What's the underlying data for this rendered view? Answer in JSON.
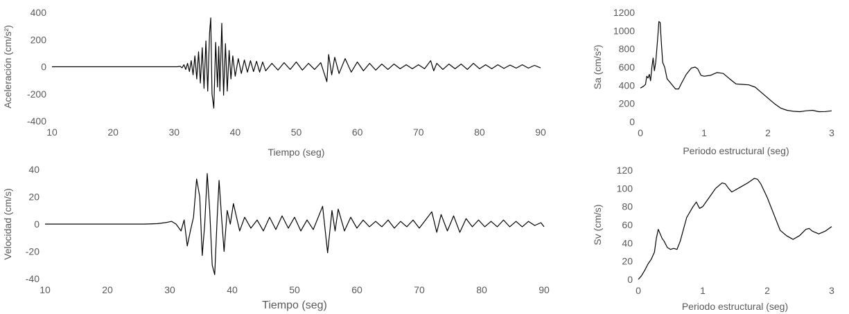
{
  "chart_data": [
    {
      "id": "aceleracion",
      "type": "line",
      "xlabel": "Tiempo (seg)",
      "ylabel": "Aceleración (cm/s²)",
      "xlim": [
        10,
        90
      ],
      "ylim": [
        -400,
        400
      ],
      "xticks": [
        10,
        20,
        30,
        40,
        50,
        60,
        70,
        80,
        90
      ],
      "yticks": [
        -400,
        -200,
        0,
        200,
        400
      ],
      "grid": false,
      "series": [
        {
          "color": "#000000",
          "points": [
            [
              10,
              0
            ],
            [
              20,
              0
            ],
            [
              29,
              0
            ],
            [
              30.5,
              0
            ],
            [
              31,
              3
            ],
            [
              31.3,
              -8
            ],
            [
              31.6,
              15
            ],
            [
              31.9,
              -20
            ],
            [
              32.2,
              25
            ],
            [
              32.5,
              -35
            ],
            [
              32.8,
              45
            ],
            [
              33.1,
              -60
            ],
            [
              33.4,
              80
            ],
            [
              33.7,
              -90
            ],
            [
              34.0,
              110
            ],
            [
              34.3,
              -120
            ],
            [
              34.6,
              140
            ],
            [
              34.9,
              -160
            ],
            [
              35.2,
              190
            ],
            [
              35.5,
              -180
            ],
            [
              35.8,
              250
            ],
            [
              36.0,
              360
            ],
            [
              36.2,
              -200
            ],
            [
              36.5,
              -305
            ],
            [
              36.8,
              180
            ],
            [
              37.1,
              -150
            ],
            [
              37.3,
              150
            ],
            [
              37.5,
              -180
            ],
            [
              37.8,
              320
            ],
            [
              38.1,
              -210
            ],
            [
              38.4,
              170
            ],
            [
              38.7,
              -180
            ],
            [
              39.0,
              120
            ],
            [
              39.3,
              -90
            ],
            [
              39.6,
              80
            ],
            [
              40.0,
              -70
            ],
            [
              40.5,
              60
            ],
            [
              41.0,
              -50
            ],
            [
              41.5,
              50
            ],
            [
              42.0,
              -40
            ],
            [
              42.5,
              45
            ],
            [
              43.0,
              -35
            ],
            [
              43.5,
              40
            ],
            [
              44.0,
              -40
            ],
            [
              44.5,
              35
            ],
            [
              45.0,
              -30
            ],
            [
              46,
              25
            ],
            [
              47,
              -25
            ],
            [
              48,
              30
            ],
            [
              49,
              -20
            ],
            [
              50,
              35
            ],
            [
              51,
              -25
            ],
            [
              52,
              25
            ],
            [
              53,
              -20
            ],
            [
              54,
              30
            ],
            [
              55,
              -110
            ],
            [
              55.3,
              90
            ],
            [
              55.8,
              -60
            ],
            [
              56.3,
              70
            ],
            [
              57,
              -50
            ],
            [
              58,
              60
            ],
            [
              59,
              -40
            ],
            [
              60,
              35
            ],
            [
              61,
              -30
            ],
            [
              62,
              25
            ],
            [
              63,
              -25
            ],
            [
              64,
              20
            ],
            [
              65,
              -20
            ],
            [
              66,
              20
            ],
            [
              67,
              -15
            ],
            [
              68,
              15
            ],
            [
              69,
              -15
            ],
            [
              70,
              15
            ],
            [
              71,
              -15
            ],
            [
              72,
              45
            ],
            [
              72.5,
              -30
            ],
            [
              73,
              25
            ],
            [
              74,
              -20
            ],
            [
              75,
              20
            ],
            [
              76,
              -15
            ],
            [
              77,
              20
            ],
            [
              78,
              -20
            ],
            [
              79,
              25
            ],
            [
              80,
              -15
            ],
            [
              81,
              15
            ],
            [
              82,
              -15
            ],
            [
              83,
              15
            ],
            [
              84,
              -12
            ],
            [
              85,
              12
            ],
            [
              86,
              -10
            ],
            [
              87,
              15
            ],
            [
              88,
              -10
            ],
            [
              89,
              10
            ],
            [
              90,
              -8
            ]
          ]
        }
      ]
    },
    {
      "id": "velocidad",
      "type": "line",
      "xlabel": "Tiempo (seg)",
      "ylabel": "Velocidad (cm/s)",
      "xlim": [
        10,
        90
      ],
      "ylim": [
        -40,
        40
      ],
      "xticks": [
        10,
        20,
        30,
        40,
        50,
        60,
        70,
        80,
        90
      ],
      "yticks": [
        -40,
        -20,
        0,
        20,
        40
      ],
      "grid": false,
      "series": [
        {
          "color": "#000000",
          "points": [
            [
              10,
              0
            ],
            [
              20,
              0
            ],
            [
              26,
              0
            ],
            [
              28,
              0.3
            ],
            [
              29.5,
              1.2
            ],
            [
              30.3,
              2
            ],
            [
              31,
              0
            ],
            [
              31.8,
              -5
            ],
            [
              32.3,
              3
            ],
            [
              32.8,
              -16
            ],
            [
              33.3,
              -5
            ],
            [
              33.8,
              5
            ],
            [
              34.3,
              33
            ],
            [
              34.8,
              20
            ],
            [
              35.2,
              -23
            ],
            [
              35.6,
              0
            ],
            [
              36.0,
              37
            ],
            [
              36.4,
              10
            ],
            [
              36.8,
              -30
            ],
            [
              37.2,
              -37
            ],
            [
              37.6,
              5
            ],
            [
              37.9,
              32
            ],
            [
              38.3,
              5
            ],
            [
              38.7,
              -20
            ],
            [
              39.2,
              10
            ],
            [
              39.7,
              0
            ],
            [
              40.2,
              15
            ],
            [
              40.7,
              5
            ],
            [
              41.2,
              -5
            ],
            [
              42,
              5
            ],
            [
              43,
              -3
            ],
            [
              44,
              3
            ],
            [
              45,
              -5
            ],
            [
              46,
              5
            ],
            [
              47,
              -4
            ],
            [
              48,
              6
            ],
            [
              49,
              -3
            ],
            [
              50,
              5
            ],
            [
              51,
              -5
            ],
            [
              52,
              3
            ],
            [
              53,
              -4
            ],
            [
              54.5,
              13
            ],
            [
              55.3,
              -21
            ],
            [
              56.0,
              10
            ],
            [
              56.5,
              -5
            ],
            [
              57,
              11
            ],
            [
              58,
              -5
            ],
            [
              59,
              5
            ],
            [
              60,
              -3
            ],
            [
              61,
              3
            ],
            [
              62,
              -2
            ],
            [
              63,
              2
            ],
            [
              64,
              -2
            ],
            [
              65,
              3
            ],
            [
              66,
              -3
            ],
            [
              67,
              2
            ],
            [
              68,
              -2
            ],
            [
              69,
              3
            ],
            [
              70,
              -3
            ],
            [
              71,
              3
            ],
            [
              72,
              9
            ],
            [
              72.8,
              -6
            ],
            [
              73.5,
              7
            ],
            [
              74.5,
              -5
            ],
            [
              75.5,
              6
            ],
            [
              76.5,
              -6
            ],
            [
              77.5,
              4
            ],
            [
              78.5,
              -2
            ],
            [
              79.5,
              3
            ],
            [
              80.5,
              -2
            ],
            [
              81.5,
              2
            ],
            [
              82.5,
              -2
            ],
            [
              83.5,
              3
            ],
            [
              84.5,
              -2
            ],
            [
              85.5,
              2
            ],
            [
              86.5,
              -2
            ],
            [
              87.5,
              2
            ],
            [
              88.5,
              -1
            ],
            [
              89.5,
              1
            ],
            [
              90,
              -2
            ]
          ]
        }
      ]
    },
    {
      "id": "sa",
      "type": "line",
      "xlabel": "Periodo estructural (seg)",
      "ylabel": "Sa (cm/s²)",
      "xlim": [
        0,
        3
      ],
      "ylim": [
        0,
        1200
      ],
      "xticks": [
        0,
        1,
        2,
        3
      ],
      "yticks": [
        0,
        200,
        400,
        600,
        800,
        1000,
        1200
      ],
      "grid": false,
      "series": [
        {
          "color": "#000000",
          "points": [
            [
              0,
              370
            ],
            [
              0.05,
              390
            ],
            [
              0.08,
              410
            ],
            [
              0.1,
              500
            ],
            [
              0.12,
              480
            ],
            [
              0.14,
              520
            ],
            [
              0.16,
              450
            ],
            [
              0.18,
              600
            ],
            [
              0.2,
              700
            ],
            [
              0.22,
              560
            ],
            [
              0.24,
              650
            ],
            [
              0.27,
              900
            ],
            [
              0.29,
              1100
            ],
            [
              0.31,
              1090
            ],
            [
              0.33,
              850
            ],
            [
              0.35,
              650
            ],
            [
              0.38,
              600
            ],
            [
              0.42,
              470
            ],
            [
              0.48,
              420
            ],
            [
              0.55,
              360
            ],
            [
              0.6,
              360
            ],
            [
              0.65,
              430
            ],
            [
              0.72,
              520
            ],
            [
              0.8,
              590
            ],
            [
              0.86,
              600
            ],
            [
              0.9,
              580
            ],
            [
              0.95,
              510
            ],
            [
              1.0,
              500
            ],
            [
              1.1,
              510
            ],
            [
              1.2,
              540
            ],
            [
              1.3,
              530
            ],
            [
              1.4,
              470
            ],
            [
              1.5,
              415
            ],
            [
              1.6,
              410
            ],
            [
              1.7,
              405
            ],
            [
              1.8,
              380
            ],
            [
              1.9,
              320
            ],
            [
              2.0,
              260
            ],
            [
              2.1,
              200
            ],
            [
              2.2,
              150
            ],
            [
              2.3,
              125
            ],
            [
              2.4,
              115
            ],
            [
              2.5,
              110
            ],
            [
              2.6,
              120
            ],
            [
              2.7,
              125
            ],
            [
              2.8,
              110
            ],
            [
              2.9,
              112
            ],
            [
              3.0,
              120
            ]
          ]
        }
      ]
    },
    {
      "id": "sv",
      "type": "line",
      "xlabel": "Periodo estructural (seg)",
      "ylabel": "Sv (cm/s)",
      "xlim": [
        0,
        3
      ],
      "ylim": [
        0,
        120
      ],
      "xticks": [
        0,
        1,
        2,
        3
      ],
      "yticks": [
        0,
        20,
        40,
        60,
        80,
        100,
        120
      ],
      "grid": false,
      "series": [
        {
          "color": "#000000",
          "points": [
            [
              0,
              0
            ],
            [
              0.05,
              4
            ],
            [
              0.1,
              10
            ],
            [
              0.15,
              17
            ],
            [
              0.2,
              22
            ],
            [
              0.25,
              30
            ],
            [
              0.28,
              45
            ],
            [
              0.31,
              55
            ],
            [
              0.34,
              50
            ],
            [
              0.37,
              45
            ],
            [
              0.4,
              42
            ],
            [
              0.45,
              35
            ],
            [
              0.5,
              33
            ],
            [
              0.55,
              34
            ],
            [
              0.6,
              33
            ],
            [
              0.65,
              42
            ],
            [
              0.7,
              55
            ],
            [
              0.75,
              68
            ],
            [
              0.8,
              74
            ],
            [
              0.85,
              80
            ],
            [
              0.9,
              85
            ],
            [
              0.95,
              78
            ],
            [
              1.0,
              80
            ],
            [
              1.05,
              85
            ],
            [
              1.1,
              90
            ],
            [
              1.2,
              100
            ],
            [
              1.3,
              106
            ],
            [
              1.35,
              105
            ],
            [
              1.4,
              100
            ],
            [
              1.45,
              96
            ],
            [
              1.5,
              98
            ],
            [
              1.6,
              102
            ],
            [
              1.7,
              106
            ],
            [
              1.8,
              111
            ],
            [
              1.85,
              110
            ],
            [
              1.9,
              105
            ],
            [
              2.0,
              90
            ],
            [
              2.1,
              72
            ],
            [
              2.2,
              54
            ],
            [
              2.3,
              48
            ],
            [
              2.4,
              44
            ],
            [
              2.5,
              48
            ],
            [
              2.6,
              55
            ],
            [
              2.65,
              56
            ],
            [
              2.7,
              53
            ],
            [
              2.8,
              50
            ],
            [
              2.9,
              53
            ],
            [
              3.0,
              58
            ]
          ]
        }
      ]
    }
  ]
}
